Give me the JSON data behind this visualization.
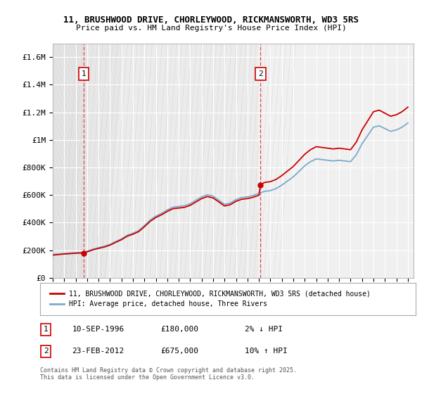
{
  "title1": "11, BRUSHWOOD DRIVE, CHORLEYWOOD, RICKMANSWORTH, WD3 5RS",
  "title2": "Price paid vs. HM Land Registry's House Price Index (HPI)",
  "legend1": "11, BRUSHWOOD DRIVE, CHORLEYWOOD, RICKMANSWORTH, WD3 5RS (detached house)",
  "legend2": "HPI: Average price, detached house, Three Rivers",
  "sale1_date": "10-SEP-1996",
  "sale1_price": 180000,
  "sale1_hpi_pct": "2% ↓ HPI",
  "sale2_date": "23-FEB-2012",
  "sale2_price": 675000,
  "sale2_hpi_pct": "10% ↑ HPI",
  "footnote_line1": "Contains HM Land Registry data © Crown copyright and database right 2025.",
  "footnote_line2": "This data is licensed under the Open Government Licence v3.0.",
  "red_color": "#cc0000",
  "blue_color": "#7aaacc",
  "dashed_red": "#dd4444",
  "ylim": [
    0,
    1700000
  ],
  "yticks": [
    0,
    200000,
    400000,
    600000,
    800000,
    1000000,
    1200000,
    1400000,
    1600000
  ],
  "ytick_labels": [
    "£0",
    "£200K",
    "£400K",
    "£600K",
    "£800K",
    "£1M",
    "£1.2M",
    "£1.4M",
    "£1.6M"
  ],
  "xmin": 1994.0,
  "xmax": 2025.5,
  "sale1_x": 1996.69,
  "sale2_x": 2012.14,
  "background_plot": "#f0f0f0",
  "background_fig": "#ffffff"
}
